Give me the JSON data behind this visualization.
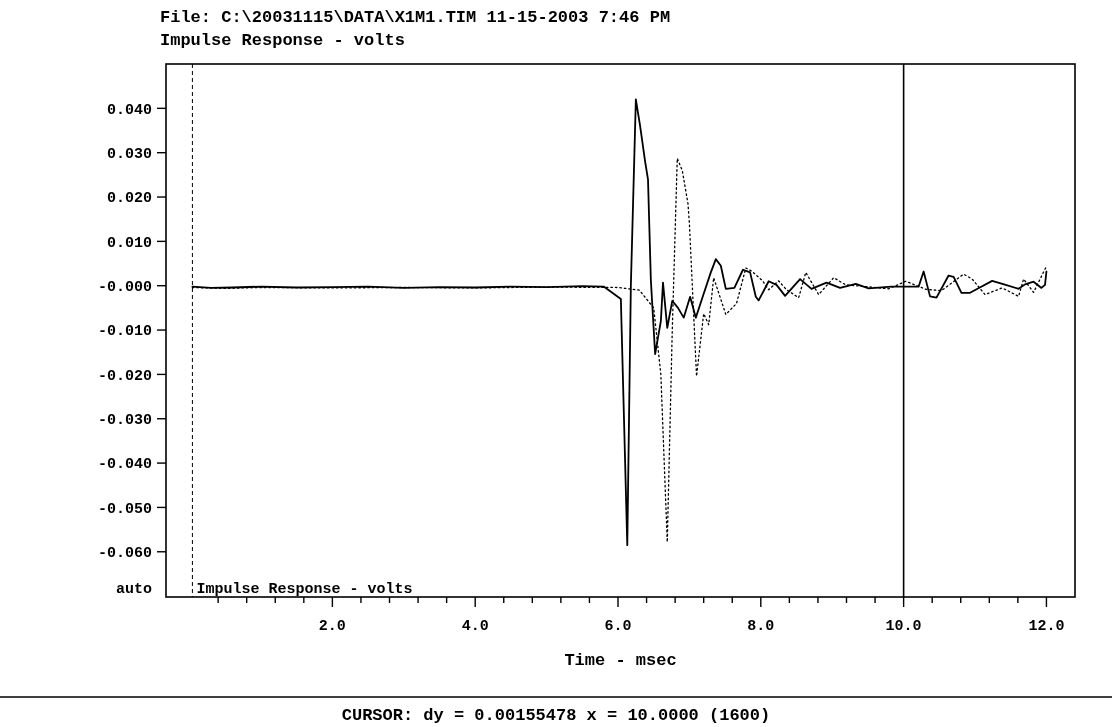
{
  "chart_data": {
    "type": "line",
    "title": "File: C:\\20031115\\DATA\\X1M1.TIM 11-15-2003 7:46 PM",
    "subtitle": "Impulse Response - volts",
    "xlabel": "Time - msec",
    "annotations": [
      "auto",
      "Impulse Response - volts",
      "CURSOR: dy = 0.00155478 x = 10.0000 (1600)"
    ],
    "xlim": [
      -0.33,
      12.4
    ],
    "ylim": [
      -0.0702,
      0.05
    ],
    "xticks": [
      {
        "value": 0.4,
        "label": null
      },
      {
        "value": 0.8,
        "label": null
      },
      {
        "value": 1.2,
        "label": null
      },
      {
        "value": 1.6,
        "label": null
      },
      {
        "value": 2,
        "label": "2.0"
      },
      {
        "value": 2.4,
        "label": null
      },
      {
        "value": 2.8,
        "label": null
      },
      {
        "value": 3.2,
        "label": null
      },
      {
        "value": 3.6,
        "label": null
      },
      {
        "value": 4,
        "label": "4.0"
      },
      {
        "value": 4.4,
        "label": null
      },
      {
        "value": 4.8,
        "label": null
      },
      {
        "value": 5.2,
        "label": null
      },
      {
        "value": 5.6,
        "label": null
      },
      {
        "value": 6,
        "label": "6.0"
      },
      {
        "value": 6.4,
        "label": null
      },
      {
        "value": 6.8,
        "label": null
      },
      {
        "value": 7.2,
        "label": null
      },
      {
        "value": 7.6,
        "label": null
      },
      {
        "value": 8,
        "label": "8.0"
      },
      {
        "value": 8.4,
        "label": null
      },
      {
        "value": 8.8,
        "label": null
      },
      {
        "value": 9.2,
        "label": null
      },
      {
        "value": 9.6,
        "label": null
      },
      {
        "value": 10,
        "label": "10.0"
      },
      {
        "value": 10.4,
        "label": null
      },
      {
        "value": 10.8,
        "label": null
      },
      {
        "value": 11.2,
        "label": null
      },
      {
        "value": 11.6,
        "label": null
      },
      {
        "value": 12,
        "label": "12.0"
      }
    ],
    "yticks": [
      {
        "value": 0.04,
        "label": "0.040"
      },
      {
        "value": 0.03,
        "label": "0.030"
      },
      {
        "value": 0.02,
        "label": "0.020"
      },
      {
        "value": 0.01,
        "label": "0.010"
      },
      {
        "value": 0,
        "label": "-0.000"
      },
      {
        "value": -0.01,
        "label": "-0.010"
      },
      {
        "value": -0.02,
        "label": "-0.020"
      },
      {
        "value": -0.03,
        "label": "-0.030"
      },
      {
        "value": -0.04,
        "label": "-0.040"
      },
      {
        "value": -0.05,
        "label": "-0.050"
      },
      {
        "value": -0.06,
        "label": "-0.060"
      }
    ],
    "grid": false,
    "marker": "none",
    "ref_lines": [
      {
        "axis": "x",
        "value": 0.04,
        "line_style": "dashed",
        "color": "#000000"
      },
      {
        "axis": "x",
        "value": 10,
        "line_style": "solid",
        "color": "#000000"
      }
    ],
    "series": [
      {
        "color": "#000000",
        "line_style": "solid",
        "x": [
          0.04,
          0.3,
          0.6,
          1.0,
          1.5,
          2.0,
          2.5,
          3.0,
          3.5,
          4.0,
          4.5,
          5.0,
          5.5,
          5.8,
          6.04,
          6.1,
          6.13,
          6.18,
          6.25,
          6.31,
          6.38,
          6.42,
          6.46,
          6.52,
          6.6,
          6.63,
          6.69,
          6.76,
          6.84,
          6.92,
          7.01,
          7.09,
          7.2,
          7.3,
          7.37,
          7.44,
          7.51,
          7.63,
          7.75,
          7.85,
          7.93,
          7.97,
          8.11,
          8.22,
          8.34,
          8.55,
          8.71,
          8.92,
          9.11,
          9.33,
          9.51,
          9.83,
          10.21,
          10.28,
          10.37,
          10.46,
          10.63,
          10.7,
          10.81,
          10.93,
          11.08,
          11.24,
          11.43,
          11.61,
          11.7,
          11.82,
          11.93,
          11.98,
          12.0
        ],
        "values": [
          -0.0002,
          -0.0005,
          -0.0004,
          -0.0002,
          -0.0004,
          -0.0003,
          -0.0002,
          -0.0005,
          -0.0003,
          -0.0004,
          -0.0002,
          -0.0003,
          -0.0001,
          -0.0002,
          -0.003,
          -0.04,
          -0.0585,
          0,
          0.042,
          0.036,
          0.028,
          0.024,
          0.0013,
          -0.0154,
          -0.008,
          0.0007,
          -0.0095,
          -0.0034,
          -0.005,
          -0.0072,
          -0.0025,
          -0.0072,
          -0.0018,
          0.003,
          0.006,
          0.0045,
          -0.0007,
          -0.0005,
          0.0036,
          0.003,
          -0.0025,
          -0.0033,
          0.001,
          0.0002,
          -0.0023,
          0.0015,
          -0.0007,
          0.0007,
          -0.0005,
          0.0004,
          -0.0006,
          -0.0002,
          -0.0002,
          0.0032,
          -0.0024,
          -0.0027,
          0.0023,
          0.002,
          -0.0016,
          -0.0016,
          -0.0003,
          0.0011,
          0.0002,
          -0.0007,
          0.0003,
          0.0009,
          -0.0005,
          0.0002,
          0.0032
        ]
      },
      {
        "color": "#000000",
        "line_style": "dotted",
        "x": [
          0.04,
          0.5,
          1.0,
          2.0,
          3.0,
          4.0,
          5.0,
          6.0,
          6.3,
          6.5,
          6.6,
          6.69,
          6.76,
          6.83,
          6.9,
          6.98,
          7.0,
          7.1,
          7.2,
          7.27,
          7.34,
          7.51,
          7.66,
          7.79,
          7.88,
          8.02,
          8.11,
          8.25,
          8.36,
          8.53,
          8.63,
          8.81,
          9.02,
          9.19,
          9.47,
          9.79,
          10.03,
          10.31,
          10.53,
          10.84,
          10.96,
          11.14,
          11.38,
          11.61,
          11.68,
          11.82,
          12.0
        ],
        "values": [
          -0.0004,
          -0.0006,
          -0.0004,
          -0.0005,
          -0.0004,
          -0.0005,
          -0.0003,
          -0.0004,
          -0.001,
          -0.005,
          -0.02,
          -0.0578,
          -0.01,
          0.0287,
          0.026,
          0.0185,
          0.014,
          -0.0204,
          -0.0063,
          -0.0088,
          0.0018,
          -0.0065,
          -0.004,
          0.004,
          0.0032,
          0.0012,
          -0.0009,
          0.0011,
          -0.0009,
          -0.0027,
          0.003,
          -0.002,
          0.0018,
          0.0002,
          -0.0002,
          -0.0007,
          0.001,
          -0.0008,
          -0.0011,
          0.0026,
          0.0015,
          -0.002,
          -0.0005,
          -0.0024,
          0.0015,
          -0.0015,
          0.0044
        ]
      }
    ]
  }
}
